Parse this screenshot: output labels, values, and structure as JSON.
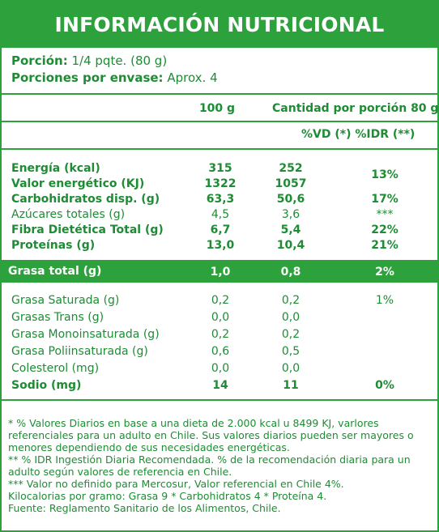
{
  "title": "INFORMACIÓN NUTRICIONAL",
  "serving": {
    "label": "Porción:",
    "value": "1/4 pqte. (80 g)",
    "per_pack_label": "Porciones por envase:",
    "per_pack_value": "Aprox. 4"
  },
  "columns": {
    "per100": "100 g",
    "perServing": "Cantidad por porción 80 g",
    "vd": "%VD (*) %IDR (**)"
  },
  "rows_top": [
    {
      "label": "Energía (kcal)",
      "v100": "315",
      "vpor": "252",
      "pct": "13%",
      "bold": true
    },
    {
      "label": "Valor energético (KJ)",
      "v100": "1322",
      "vpor": "1057",
      "pct": "",
      "bold": true
    },
    {
      "label": "Carbohidratos disp. (g)",
      "v100": "63,3",
      "vpor": "50,6",
      "pct": "17%",
      "bold": true
    },
    {
      "label": "Azúcares totales (g)",
      "v100": "4,5",
      "vpor": "3,6",
      "pct": "***",
      "bold": false
    },
    {
      "label": "Fibra Dietética Total (g)",
      "v100": "6,7",
      "vpor": "5,4",
      "pct": "22%",
      "bold": true
    },
    {
      "label": "Proteínas (g)",
      "v100": "13,0",
      "vpor": "10,4",
      "pct": "21%",
      "bold": true
    }
  ],
  "fat_band": {
    "label": "Grasa total (g)",
    "v100": "1,0",
    "vpor": "0,8",
    "pct": "2%"
  },
  "rows_bottom": [
    {
      "label": "Grasa Saturada (g)",
      "v100": "0,2",
      "vpor": "0,2",
      "pct": "1%",
      "bold": false
    },
    {
      "label": "Grasas Trans (g)",
      "v100": "0,0",
      "vpor": "0,0",
      "pct": "",
      "bold": false
    },
    {
      "label": "Grasa Monoinsaturada (g)",
      "v100": "0,2",
      "vpor": "0,2",
      "pct": "",
      "bold": false
    },
    {
      "label": "Grasa Poliinsaturada (g)",
      "v100": "0,6",
      "vpor": "0,5",
      "pct": "",
      "bold": false
    },
    {
      "label": "Colesterol (mg)",
      "v100": "0,0",
      "vpor": "0,0",
      "pct": "",
      "bold": false
    },
    {
      "label": "Sodio (mg)",
      "v100": "14",
      "vpor": "11",
      "pct": "0%",
      "bold": true
    }
  ],
  "footnotes": "* % Valores Diarios en base a una dieta de 2.000 kcal u 8499 KJ, varlores referenciales para un adulto en Chile. Sus valores diarios pueden ser mayores o menores dependiendo de sus necesidades energéticas.\n** % IDR Ingestión Diaria Recomendada. % de la recomendación diaria para un adulto según valores de referencia en Chile.\n*** Valor no definido para Mercosur, Valor referencial en Chile 4%.\nKilocalorias por gramo: Grasa 9 * Carbohidratos 4 * Proteína 4.\nFuente: Reglamento Sanitario de los Alimentos, Chile.",
  "colors": {
    "accent": "#2da23c",
    "text": "#1e8c34"
  }
}
